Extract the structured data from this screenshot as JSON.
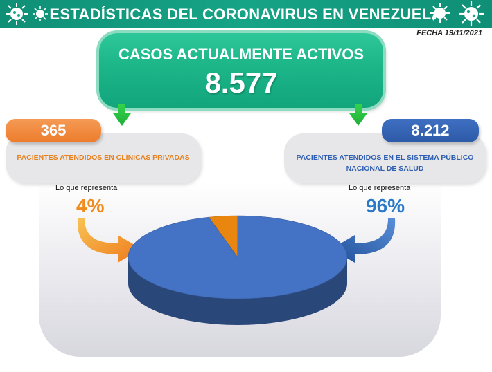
{
  "header": {
    "title": "ESTADÍSTICAS DEL CORONAVIRUS EN VENEZUELA",
    "date": "FECHA 19/11/2021",
    "color": "#16a486"
  },
  "active": {
    "label": "CASOS ACTUALMENTE ACTIVOS",
    "value": "8.577"
  },
  "private": {
    "count": "365",
    "label": "PACIENTES ATENDIDOS EN CLÍNICAS PRIVADAS",
    "represents_label": "Lo que representa",
    "percent": "4%",
    "color": "#f18a3a"
  },
  "public": {
    "count": "8.212",
    "label": "PACIENTES ATENDIDOS EN EL SISTEMA PÚBLICO NACIONAL DE SALUD",
    "represents_label": "Lo que representa",
    "percent": "96%",
    "color": "#2f5fb0"
  },
  "chart_data": {
    "type": "pie",
    "title": "",
    "slices": [
      {
        "label": "PACIENTES ATENDIDOS EN CLÍNICAS PRIVADAS",
        "value": 365,
        "percent": 4,
        "color": "#e8860f"
      },
      {
        "label": "PACIENTES ATENDIDOS EN EL SISTEMA PÚBLICO NACIONAL DE SALUD",
        "value": 8212,
        "percent": 96,
        "color": "#4472c4"
      }
    ],
    "style": "3d"
  }
}
